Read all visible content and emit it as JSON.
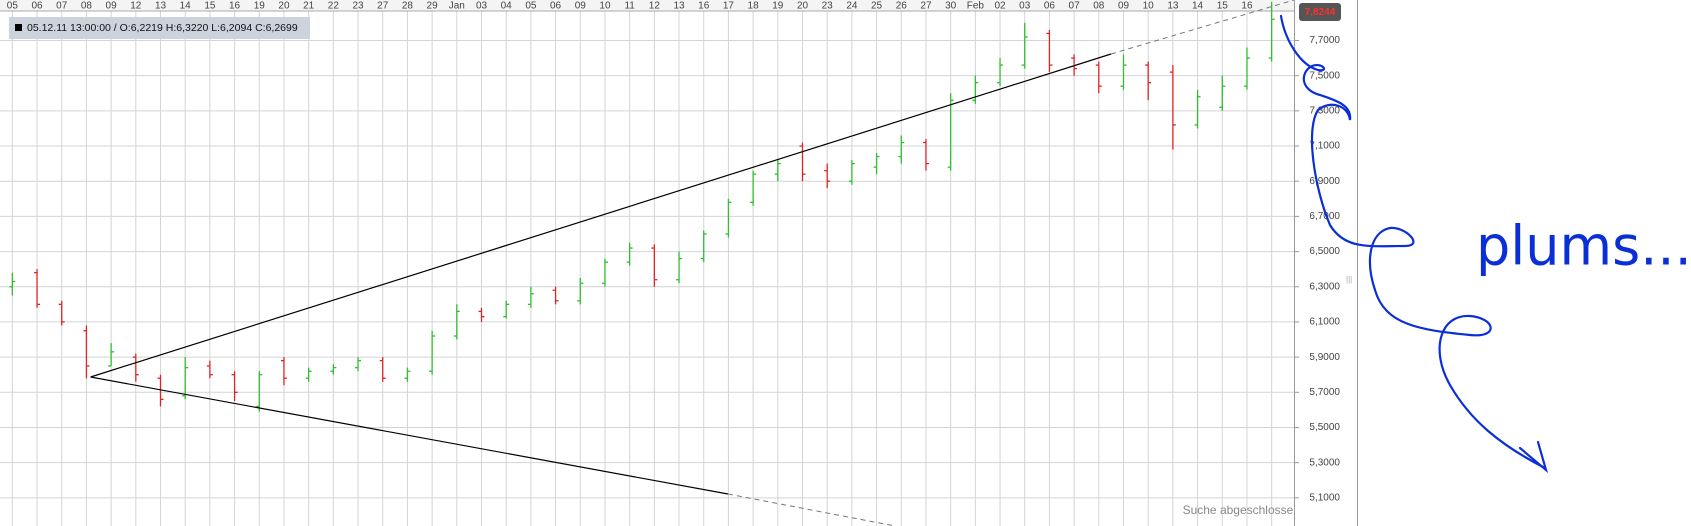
{
  "chart_data": {
    "type": "ohlc",
    "info": "05.12.11 13:00:00 / O:6,2219  H:6,3220  L:6,2094  C:6,2699",
    "last_price": "7,8244",
    "status": "Suche abgeschlossen",
    "annotation": "plums...",
    "categories": [
      "05",
      "06",
      "07",
      "08",
      "09",
      "12",
      "13",
      "14",
      "15",
      "16",
      "19",
      "20",
      "21",
      "22",
      "23",
      "27",
      "28",
      "29",
      "Jan",
      "03",
      "04",
      "05",
      "06",
      "09",
      "10",
      "11",
      "12",
      "13",
      "16",
      "17",
      "18",
      "19",
      "20",
      "23",
      "24",
      "25",
      "26",
      "27",
      "30",
      "Feb",
      "02",
      "03",
      "06",
      "07",
      "08",
      "09",
      "10",
      "13",
      "14",
      "15",
      "16",
      null
    ],
    "open": [
      6.3,
      6.38,
      6.2,
      6.05,
      5.85,
      5.9,
      5.78,
      5.68,
      5.85,
      5.8,
      5.62,
      5.88,
      5.78,
      5.82,
      5.84,
      5.88,
      5.78,
      5.82,
      6.02,
      6.16,
      6.13,
      6.2,
      6.28,
      6.22,
      6.32,
      6.44,
      6.52,
      6.34,
      6.46,
      6.6,
      6.78,
      6.94,
      7.1,
      6.96,
      6.9,
      6.98,
      7.04,
      7.12,
      6.98,
      7.36,
      7.46,
      7.56,
      7.74,
      7.6,
      7.56,
      7.44,
      7.56,
      7.52,
      7.22,
      7.32,
      7.44,
      7.6
    ],
    "high": [
      6.38,
      6.4,
      6.22,
      6.08,
      5.98,
      5.92,
      5.8,
      5.9,
      5.88,
      5.82,
      5.82,
      5.9,
      5.84,
      5.86,
      5.9,
      5.9,
      5.84,
      6.05,
      6.2,
      6.18,
      6.22,
      6.3,
      6.3,
      6.35,
      6.46,
      6.55,
      6.54,
      6.5,
      6.62,
      6.8,
      6.96,
      7.02,
      7.12,
      7.0,
      7.02,
      7.06,
      7.16,
      7.14,
      7.4,
      7.5,
      7.6,
      7.8,
      7.76,
      7.62,
      7.58,
      7.62,
      7.58,
      7.56,
      7.42,
      7.5,
      7.66,
      7.92
    ],
    "low": [
      6.25,
      6.18,
      6.08,
      5.78,
      5.85,
      5.76,
      5.62,
      5.66,
      5.78,
      5.65,
      5.59,
      5.74,
      5.76,
      5.8,
      5.82,
      5.76,
      5.76,
      5.8,
      6.0,
      6.1,
      6.12,
      6.18,
      6.2,
      6.2,
      6.3,
      6.42,
      6.3,
      6.32,
      6.44,
      6.58,
      6.76,
      6.9,
      6.9,
      6.86,
      6.88,
      6.94,
      7.0,
      6.96,
      6.96,
      7.34,
      7.44,
      7.54,
      7.52,
      7.5,
      7.4,
      7.42,
      7.36,
      7.08,
      7.2,
      7.3,
      7.42,
      7.58
    ],
    "close": [
      6.33,
      6.2,
      6.1,
      5.85,
      5.93,
      5.8,
      5.66,
      5.84,
      5.8,
      5.7,
      5.8,
      5.78,
      5.82,
      5.84,
      5.88,
      5.78,
      5.82,
      6.02,
      6.16,
      6.13,
      6.2,
      6.26,
      6.22,
      6.32,
      6.44,
      6.52,
      6.34,
      6.46,
      6.6,
      6.78,
      6.94,
      7.0,
      6.94,
      6.9,
      7.0,
      7.04,
      7.12,
      7.0,
      7.36,
      7.46,
      7.56,
      7.72,
      7.56,
      7.54,
      7.44,
      7.56,
      7.46,
      7.22,
      7.38,
      7.44,
      7.6,
      7.82
    ],
    "up_color": "#2fbf2f",
    "down_color": "#e02424",
    "ylim": [
      4.94,
      7.93
    ],
    "yticks": [
      {
        "value": 5.1,
        "label": "5,1000"
      },
      {
        "value": 5.3,
        "label": "5,3000"
      },
      {
        "value": 5.5,
        "label": "5,5000"
      },
      {
        "value": 5.7,
        "label": "5,7000"
      },
      {
        "value": 5.9,
        "label": "5,9000"
      },
      {
        "value": 6.1,
        "label": "6,1000"
      },
      {
        "value": 6.3,
        "label": "6,3000"
      },
      {
        "value": 6.5,
        "label": "6,5000"
      },
      {
        "value": 6.7,
        "label": "6,7000"
      },
      {
        "value": 6.9,
        "label": "6,9000"
      },
      {
        "value": 7.1,
        "label": "7,1000"
      },
      {
        "value": 7.3,
        "label": "7,3000"
      },
      {
        "value": 7.5,
        "label": "7,5000"
      },
      {
        "value": 7.7,
        "label": "7,7000"
      }
    ],
    "grid": true
  }
}
